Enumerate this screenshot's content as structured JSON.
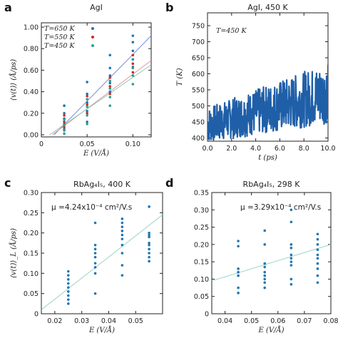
{
  "panels": [
    {
      "letter": "a",
      "title": "AgI"
    },
    {
      "letter": "b",
      "title": "AgI, 450 K"
    },
    {
      "letter": "c",
      "title": "RbAg₄I₅, 400 K"
    },
    {
      "letter": "d",
      "title": "RbAg₄I₅, 298 K"
    }
  ],
  "chart_data": [
    {
      "type": "scatter",
      "panel": "a",
      "title": "AgI",
      "xlabel": "E (V/Å)",
      "ylabel": "⟨v(t)⟩ (Å/ps)",
      "xlim": [
        0,
        0.12
      ],
      "ylim": [
        -0.02,
        1.04
      ],
      "xticks": [
        "0",
        "0.05",
        "0.10"
      ],
      "yticks": [
        "0.00",
        "0.20",
        "0.40",
        "0.60",
        "0.80",
        "1.00"
      ],
      "legend_position": "top-left",
      "series": [
        {
          "name": "T=650 K",
          "color": "#1f77b4",
          "points": [
            [
              0.025,
              0.27
            ],
            [
              0.025,
              0.2
            ],
            [
              0.025,
              0.15
            ],
            [
              0.025,
              0.1
            ],
            [
              0.025,
              0.05
            ],
            [
              0.05,
              0.49
            ],
            [
              0.05,
              0.38
            ],
            [
              0.05,
              0.3
            ],
            [
              0.05,
              0.22
            ],
            [
              0.05,
              0.12
            ],
            [
              0.075,
              0.74
            ],
            [
              0.075,
              0.62
            ],
            [
              0.075,
              0.55
            ],
            [
              0.075,
              0.48
            ],
            [
              0.075,
              0.4
            ],
            [
              0.1,
              0.92
            ],
            [
              0.1,
              0.86
            ],
            [
              0.1,
              0.78
            ],
            [
              0.1,
              0.7
            ],
            [
              0.1,
              0.63
            ]
          ],
          "fit": [
            [
              0.014,
              0.0
            ],
            [
              0.12,
              0.92
            ]
          ]
        },
        {
          "name": "T=550 K",
          "color": "#d62728",
          "points": [
            [
              0.025,
              0.18
            ],
            [
              0.025,
              0.12
            ],
            [
              0.025,
              0.07
            ],
            [
              0.05,
              0.36
            ],
            [
              0.05,
              0.28
            ],
            [
              0.05,
              0.2
            ],
            [
              0.075,
              0.53
            ],
            [
              0.075,
              0.45
            ],
            [
              0.075,
              0.38
            ],
            [
              0.1,
              0.74
            ],
            [
              0.1,
              0.66
            ],
            [
              0.1,
              0.58
            ]
          ],
          "fit": [
            [
              0.012,
              0.0
            ],
            [
              0.12,
              0.69
            ]
          ]
        },
        {
          "name": "T=450 K",
          "color": "#2ca089",
          "points": [
            [
              0.025,
              0.14
            ],
            [
              0.025,
              0.09
            ],
            [
              0.025,
              0.04
            ],
            [
              0.025,
              0.01
            ],
            [
              0.05,
              0.33
            ],
            [
              0.05,
              0.26
            ],
            [
              0.05,
              0.18
            ],
            [
              0.05,
              0.1
            ],
            [
              0.075,
              0.5
            ],
            [
              0.075,
              0.43
            ],
            [
              0.075,
              0.35
            ],
            [
              0.075,
              0.27
            ],
            [
              0.1,
              0.7
            ],
            [
              0.1,
              0.62
            ],
            [
              0.1,
              0.55
            ],
            [
              0.1,
              0.47
            ]
          ],
          "fit": [
            [
              0.009,
              0.0
            ],
            [
              0.12,
              0.65
            ]
          ]
        }
      ]
    },
    {
      "type": "line",
      "panel": "b",
      "title": "AgI, 450 K",
      "xlabel": "t (ps)",
      "ylabel": "T (K)",
      "xlim": [
        0,
        10
      ],
      "ylim": [
        390,
        790
      ],
      "xticks": [
        "0.0",
        "2.0",
        "4.0",
        "6.0",
        "8.0",
        "10.0"
      ],
      "yticks": [
        "400",
        "450",
        "500",
        "550",
        "600",
        "650",
        "700",
        "750"
      ],
      "annotation": "T=450 K",
      "trend": [
        440,
        540
      ],
      "color": "#1f5fa8"
    },
    {
      "type": "scatter",
      "panel": "c",
      "title": "RbAg₄I₅, 400 K",
      "xlabel": "E (V/Å)",
      "ylabel": "⟨v(t)⟩_L (Å/ps)",
      "xlim": [
        0.015,
        0.06
      ],
      "ylim": [
        0,
        0.3
      ],
      "xticks": [
        "0.02",
        "0.03",
        "0.04",
        "0.05"
      ],
      "yticks": [
        "0",
        "0.05",
        "0.10",
        "0.15",
        "0.20",
        "0.25",
        "0.30"
      ],
      "annotation": "μ =4.24x10⁻⁴ cm²/V.s",
      "series": [
        {
          "name": "",
          "color": "#1f77b4",
          "points": [
            [
              0.025,
              0.105
            ],
            [
              0.025,
              0.095
            ],
            [
              0.025,
              0.085
            ],
            [
              0.025,
              0.075
            ],
            [
              0.025,
              0.065
            ],
            [
              0.025,
              0.055
            ],
            [
              0.025,
              0.045
            ],
            [
              0.025,
              0.035
            ],
            [
              0.025,
              0.025
            ],
            [
              0.035,
              0.225
            ],
            [
              0.035,
              0.17
            ],
            [
              0.035,
              0.16
            ],
            [
              0.035,
              0.15
            ],
            [
              0.035,
              0.14
            ],
            [
              0.035,
              0.125
            ],
            [
              0.035,
              0.115
            ],
            [
              0.035,
              0.1
            ],
            [
              0.035,
              0.05
            ],
            [
              0.045,
              0.235
            ],
            [
              0.045,
              0.225
            ],
            [
              0.045,
              0.215
            ],
            [
              0.045,
              0.205
            ],
            [
              0.045,
              0.195
            ],
            [
              0.045,
              0.185
            ],
            [
              0.045,
              0.17
            ],
            [
              0.045,
              0.15
            ],
            [
              0.045,
              0.12
            ],
            [
              0.045,
              0.095
            ],
            [
              0.055,
              0.265
            ],
            [
              0.055,
              0.2
            ],
            [
              0.055,
              0.195
            ],
            [
              0.055,
              0.19
            ],
            [
              0.055,
              0.175
            ],
            [
              0.055,
              0.17
            ],
            [
              0.055,
              0.16
            ],
            [
              0.055,
              0.15
            ],
            [
              0.055,
              0.14
            ],
            [
              0.055,
              0.13
            ]
          ],
          "fit": [
            [
              0.015,
              0.01
            ],
            [
              0.06,
              0.245
            ]
          ]
        }
      ]
    },
    {
      "type": "scatter",
      "panel": "d",
      "title": "RbAg₄I₅, 298 K",
      "xlabel": "E (V/Å)",
      "ylabel": "",
      "xlim": [
        0.035,
        0.08
      ],
      "ylim": [
        0,
        0.35
      ],
      "xticks": [
        "0.04",
        "0.05",
        "0.06",
        "0.07",
        "0.08"
      ],
      "yticks": [
        "0",
        "0.05",
        "0.10",
        "0.15",
        "0.20",
        "0.25",
        "0.30",
        "0.35"
      ],
      "annotation": "μ =3.29x10⁻⁴ cm²/V.s",
      "series": [
        {
          "name": "",
          "color": "#1f77b4",
          "points": [
            [
              0.045,
              0.21
            ],
            [
              0.045,
              0.195
            ],
            [
              0.045,
              0.13
            ],
            [
              0.045,
              0.12
            ],
            [
              0.045,
              0.11
            ],
            [
              0.045,
              0.075
            ],
            [
              0.045,
              0.06
            ],
            [
              0.055,
              0.24
            ],
            [
              0.055,
              0.2
            ],
            [
              0.055,
              0.145
            ],
            [
              0.055,
              0.135
            ],
            [
              0.055,
              0.12
            ],
            [
              0.055,
              0.11
            ],
            [
              0.055,
              0.1
            ],
            [
              0.055,
              0.09
            ],
            [
              0.055,
              0.075
            ],
            [
              0.065,
              0.3
            ],
            [
              0.065,
              0.265
            ],
            [
              0.065,
              0.2
            ],
            [
              0.065,
              0.19
            ],
            [
              0.065,
              0.17
            ],
            [
              0.065,
              0.16
            ],
            [
              0.065,
              0.15
            ],
            [
              0.065,
              0.14
            ],
            [
              0.065,
              0.1
            ],
            [
              0.065,
              0.085
            ],
            [
              0.075,
              0.23
            ],
            [
              0.075,
              0.215
            ],
            [
              0.075,
              0.2
            ],
            [
              0.075,
              0.185
            ],
            [
              0.075,
              0.17
            ],
            [
              0.075,
              0.16
            ],
            [
              0.075,
              0.145
            ],
            [
              0.075,
              0.13
            ],
            [
              0.075,
              0.11
            ],
            [
              0.075,
              0.09
            ]
          ],
          "fit": [
            [
              0.035,
              0.095
            ],
            [
              0.08,
              0.2
            ]
          ]
        }
      ]
    }
  ]
}
